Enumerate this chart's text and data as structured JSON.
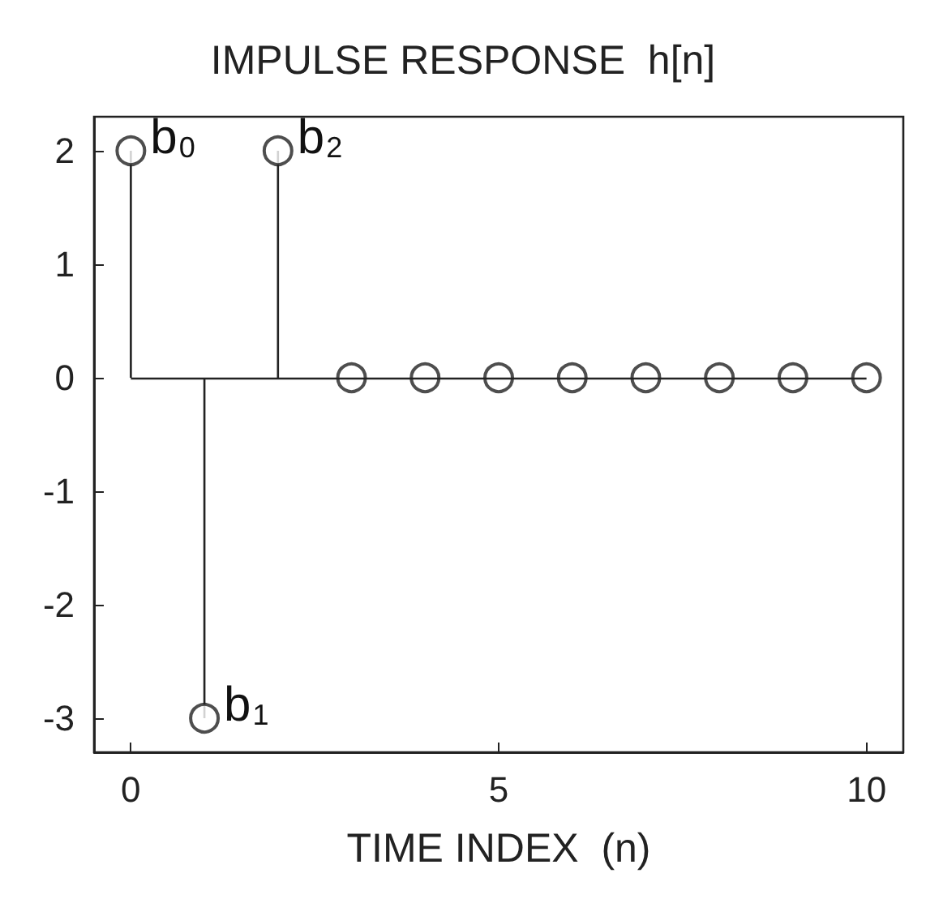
{
  "chart_data": {
    "type": "lollipop",
    "title": "IMPULSE RESPONSE  h[n]",
    "xlabel": "TIME INDEX  (n)",
    "x": [
      0,
      1,
      2,
      3,
      4,
      5,
      6,
      7,
      8,
      9,
      10
    ],
    "values": [
      2,
      -3,
      2,
      0,
      0,
      0,
      0,
      0,
      0,
      0,
      0
    ],
    "color": "#222222",
    "ref_lines": [
      {
        "axis": "y",
        "value": 0
      }
    ],
    "marker": "circle",
    "grid": false,
    "xlim": [
      -0.5,
      10.5
    ],
    "xticks": [
      0,
      5,
      10
    ],
    "ylim": [
      -3.3,
      2.3
    ],
    "yticks": [
      -3,
      -2,
      -1,
      0,
      1,
      2
    ],
    "annotations": [
      {
        "text": "b$_{0}$",
        "x": 0,
        "y": 2
      },
      {
        "text": "b$_{1}$",
        "x": 1,
        "y": -3
      },
      {
        "text": "b$_{2}$",
        "x": 2,
        "y": 2
      }
    ]
  }
}
